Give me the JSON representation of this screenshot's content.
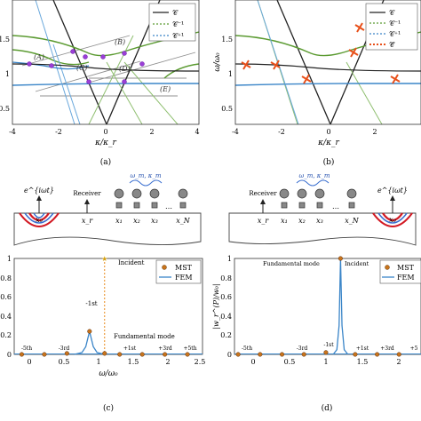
{
  "panels": {
    "a": {
      "caption": "(a)",
      "xlabel": "κ/κ_r",
      "xticks": [
        "-4",
        "-2",
        "0",
        "2",
        "4"
      ],
      "yticks": [
        "0",
        "0.5",
        "1",
        "1.5"
      ],
      "legend": [
        "𝒞",
        "𝒞⁻¹",
        "𝒞⁺¹"
      ],
      "annotations": [
        "(A)",
        "(B)",
        "(C)",
        "(D)",
        "(E)"
      ]
    },
    "b": {
      "caption": "(b)",
      "xlabel": "κ/κ_r",
      "ylabel": "ω/ω₀",
      "xticks": [
        "-4",
        "-2",
        "0",
        "2"
      ],
      "yticks": [
        "0",
        "0.5",
        "1",
        "1.5"
      ],
      "legend": [
        "𝒞",
        "𝒞⁻¹",
        "𝒞⁺¹",
        "𝒞̃"
      ]
    },
    "c": {
      "caption": "(c)",
      "xlabel": "ω/ω₀",
      "schematic": {
        "source": "e^{iωt}",
        "source_pos": "x₀",
        "receiver": "Receiver",
        "receiver_pos": "x_r",
        "modulation": "ω_m, κ_m",
        "resonators": [
          "x₁",
          "x₂",
          "x₃",
          "…",
          "x_N"
        ]
      },
      "xticks": [
        "0",
        "0.5",
        "1",
        "1.5",
        "2",
        "2.5"
      ],
      "yticks": [
        "0",
        "0.2",
        "0.4",
        "0.6",
        "0.8",
        "1"
      ],
      "legend": [
        "MST",
        "FEM"
      ],
      "labels": {
        "incident": "Incident",
        "fundamental": "Fundamental mode",
        "m1": "-1st",
        "orders": [
          "-5th",
          "-3rd",
          "+1st",
          "+3rd",
          "+5th"
        ]
      }
    },
    "d": {
      "caption": "(d)",
      "ylabel": "|w_r^(P)/w₀|",
      "schematic": {
        "source": "e^{iωt}",
        "source_pos": "x₀",
        "receiver": "Receiver",
        "receiver_pos": "x_r",
        "modulation": "ω_m, κ_m",
        "resonators": [
          "x₁",
          "x₂",
          "x₃",
          "…",
          "x_N"
        ]
      },
      "xticks": [
        "0",
        "0.5",
        "1",
        "1.5",
        "2"
      ],
      "yticks": [
        "0",
        "0.2",
        "0.4",
        "0.6",
        "0.8",
        "1"
      ],
      "legend": [
        "MST",
        "FEM"
      ],
      "labels": {
        "incident": "Incident",
        "fundamental": "Fundamental mode",
        "m1": "-1st",
        "orders": [
          "-5th",
          "-3rd",
          "+1st",
          "+3rd",
          "+5"
        ]
      }
    }
  },
  "chart_data": [
    {
      "panel": "c",
      "type": "line",
      "xlim": [
        0,
        2.5
      ],
      "ylim": [
        0,
        1
      ],
      "series": [
        {
          "name": "MST",
          "x": [
            -0.2,
            0.1,
            0.4,
            0.7,
            1.0,
            1.2,
            1.4,
            1.7,
            2.0,
            2.3
          ],
          "y": [
            0.0,
            0.0,
            0.0,
            0.01,
            0.24,
            0.01,
            0.0,
            0.0,
            0.0,
            0.0
          ]
        },
        {
          "name": "FEM",
          "x": [
            0.8,
            0.9,
            0.95,
            1.0,
            1.05,
            1.1,
            1.2
          ],
          "y": [
            0.0,
            0.02,
            0.08,
            0.24,
            0.08,
            0.02,
            0.0
          ]
        }
      ],
      "incident_x": 1.2
    },
    {
      "panel": "d",
      "type": "line",
      "xlim": [
        -0.25,
        2.3
      ],
      "ylim": [
        0,
        1
      ],
      "series": [
        {
          "name": "MST",
          "x": [
            -0.2,
            0.1,
            0.4,
            0.7,
            1.0,
            1.2,
            1.4,
            1.7,
            2.0
          ],
          "y": [
            0.0,
            0.0,
            0.0,
            0.0,
            0.02,
            1.0,
            0.0,
            0.0,
            0.0
          ]
        },
        {
          "name": "FEM",
          "x": [
            1.1,
            1.15,
            1.18,
            1.2,
            1.22,
            1.25,
            1.3
          ],
          "y": [
            0.0,
            0.05,
            0.3,
            1.0,
            0.3,
            0.05,
            0.0
          ]
        }
      ]
    }
  ]
}
